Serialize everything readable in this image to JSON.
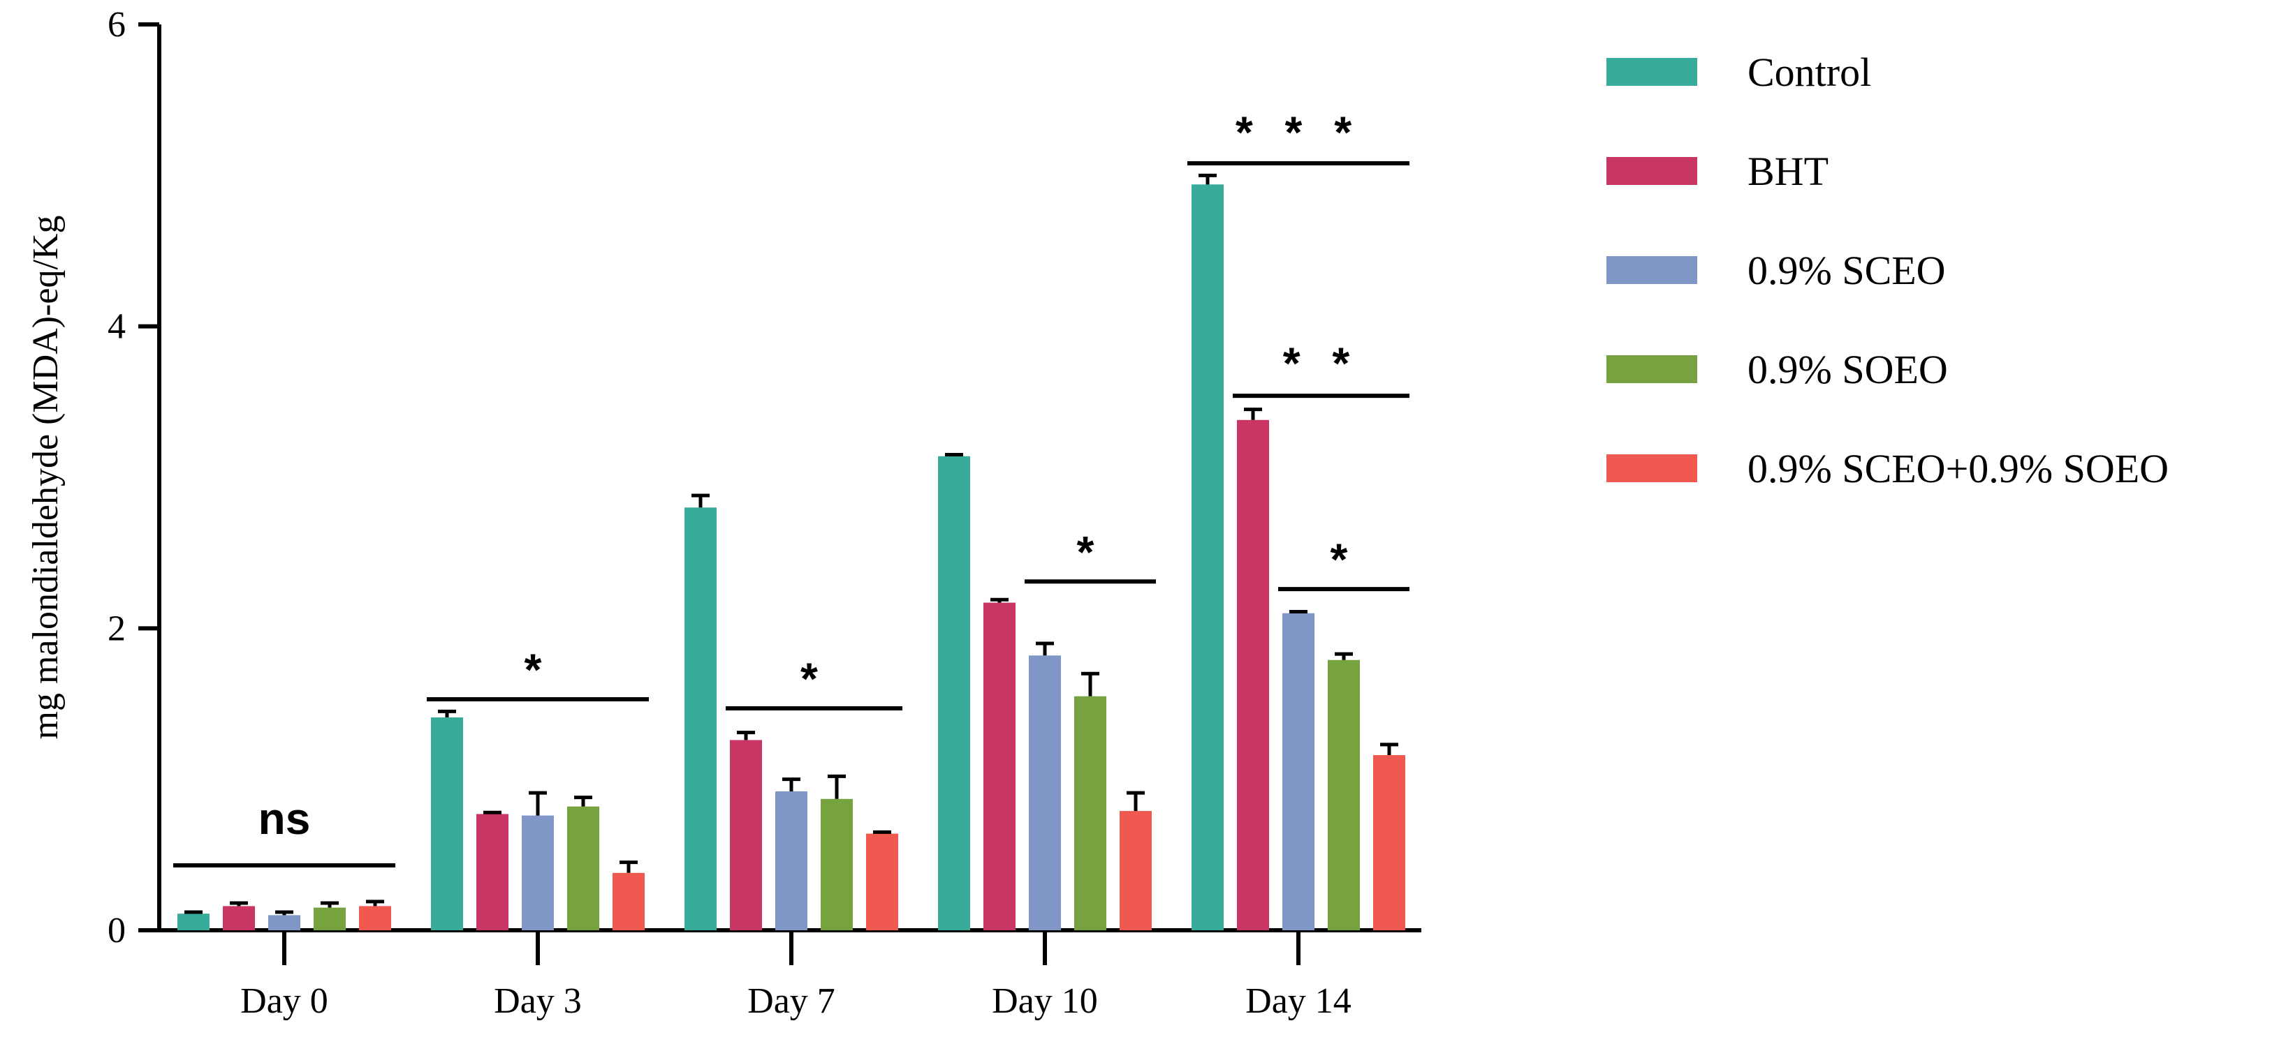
{
  "chart_data": {
    "type": "bar",
    "title": "",
    "xlabel": "",
    "ylabel": "mg malondialdehyde (MDA)-eq/Kg",
    "ylim": [
      0,
      6
    ],
    "yticks": [
      "0",
      "2",
      "4",
      "6"
    ],
    "categories": [
      "Day 0",
      "Day 3",
      "Day 7",
      "Day 10",
      "Day 14"
    ],
    "series": [
      {
        "name": "Control",
        "color": "#38AB9A",
        "values": [
          0.11,
          1.41,
          2.8,
          3.14,
          4.94
        ],
        "errors": [
          0.01,
          0.04,
          0.08,
          0.01,
          0.06
        ]
      },
      {
        "name": "BHT",
        "color": "#C93663",
        "values": [
          0.16,
          0.77,
          1.26,
          2.17,
          3.38
        ],
        "errors": [
          0.02,
          0.01,
          0.05,
          0.02,
          0.07
        ]
      },
      {
        "name": "0.9% SCEO",
        "color": "#7F96C6",
        "values": [
          0.1,
          0.76,
          0.92,
          1.82,
          2.1
        ],
        "errors": [
          0.02,
          0.15,
          0.08,
          0.08,
          0.01
        ]
      },
      {
        "name": "0.9% SOEO",
        "color": "#76A240",
        "values": [
          0.15,
          0.82,
          0.87,
          1.55,
          1.79
        ],
        "errors": [
          0.03,
          0.06,
          0.15,
          0.15,
          0.04
        ]
      },
      {
        "name": "0.9% SCEO+0.9% SOEO",
        "color": "#F0594F",
        "values": [
          0.16,
          0.38,
          0.64,
          0.79,
          1.16
        ],
        "errors": [
          0.03,
          0.07,
          0.01,
          0.12,
          0.07
        ]
      }
    ],
    "annotations": [
      {
        "label": "ns",
        "category": "Day 0",
        "from_series": 0,
        "to_series": 4,
        "y": 0.43,
        "text_y": 0.72
      },
      {
        "label": "*",
        "category": "Day 3",
        "from_series": 0,
        "to_series": 4,
        "y": 1.53,
        "text_y": 1.8
      },
      {
        "label": "*",
        "category": "Day 7",
        "from_series": 1,
        "to_series": 4,
        "y": 1.47,
        "text_y": 1.74
      },
      {
        "label": "*",
        "category": "Day 10",
        "from_series": 2,
        "to_series": 4,
        "y": 2.31,
        "text_y": 2.58
      },
      {
        "label": "* * *",
        "category": "Day 14",
        "from_series": 0,
        "to_series": 4,
        "y": 5.08,
        "text_y": 5.36
      },
      {
        "label": "* *",
        "category": "Day 14",
        "from_series": 1,
        "to_series": 4,
        "y": 3.54,
        "text_y": 3.83
      },
      {
        "label": "*",
        "category": "Day 14",
        "from_series": 2,
        "to_series": 4,
        "y": 2.26,
        "text_y": 2.53
      }
    ],
    "legend_position": "right"
  }
}
